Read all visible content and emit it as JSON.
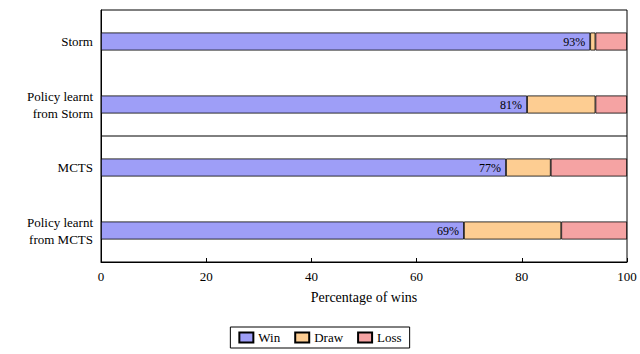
{
  "chart_data": {
    "type": "bar",
    "orientation": "horizontal",
    "stacked": true,
    "categories": [
      "Storm",
      "Policy learnt\nfrom Storm",
      "MCTS",
      "Policy learnt\nfrom MCTS"
    ],
    "series": [
      {
        "name": "Win",
        "color": "#9e9ef7",
        "values": [
          93,
          81,
          77,
          69
        ],
        "value_labels": [
          "93%",
          "81%",
          "77%",
          "69%"
        ]
      },
      {
        "name": "Draw",
        "color": "#fdcd92",
        "values": [
          1,
          13,
          8.5,
          18.5
        ]
      },
      {
        "name": "Loss",
        "color": "#f5a3a3",
        "values": [
          6,
          6,
          14.5,
          12.5
        ]
      }
    ],
    "xlabel": "Percentage of wins",
    "xlim": [
      0,
      100
    ],
    "xticks": [
      0,
      20,
      40,
      60,
      80,
      100
    ],
    "legend": "bottom",
    "grid": false
  }
}
